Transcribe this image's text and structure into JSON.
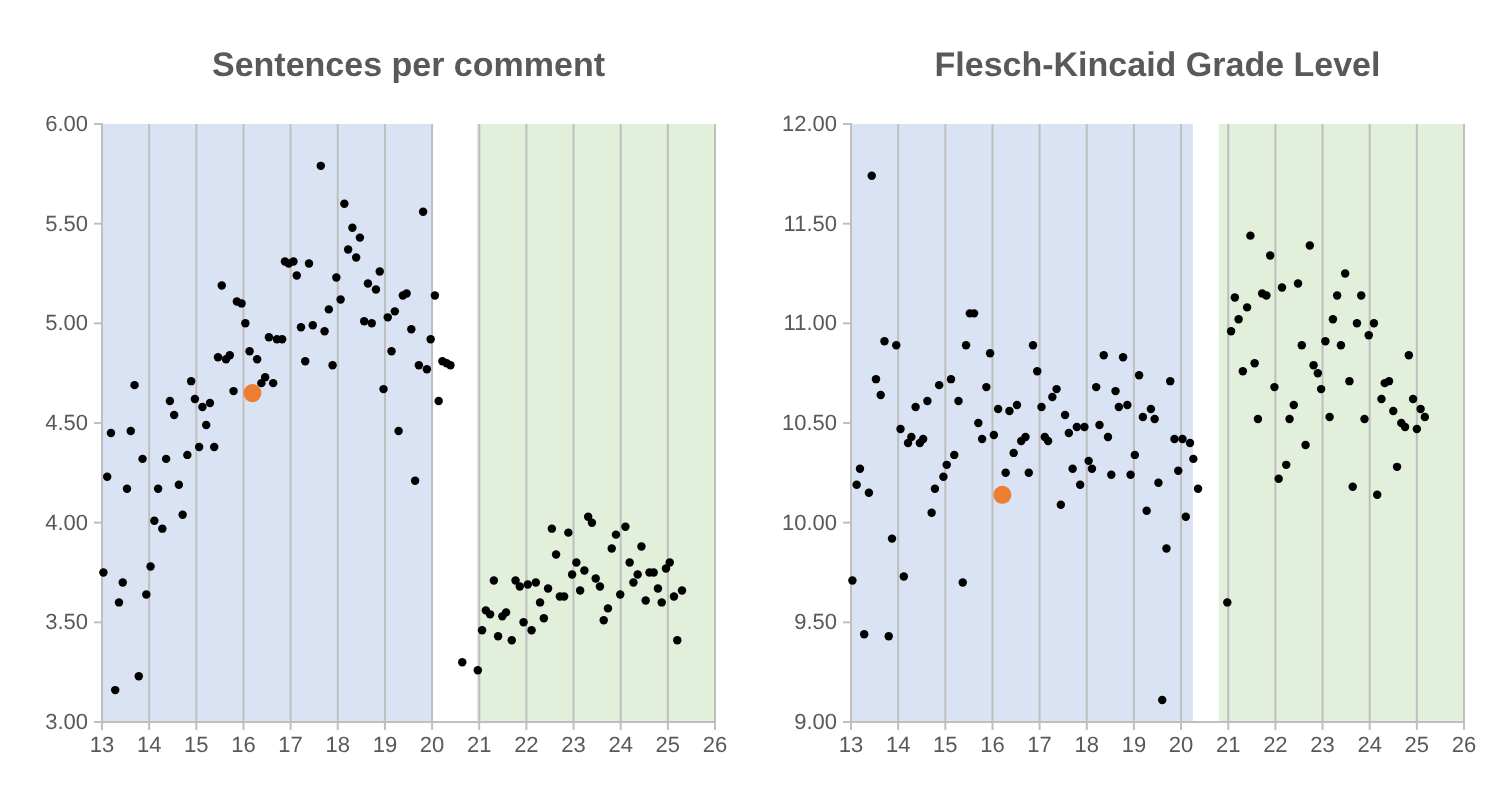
{
  "chart_data": [
    {
      "type": "scatter",
      "title": "Sentences per comment",
      "marker": "circle",
      "grid": "x",
      "xlim": [
        13,
        26
      ],
      "xticks": [
        13,
        14,
        15,
        16,
        17,
        18,
        19,
        20,
        21,
        22,
        23,
        24,
        25,
        26
      ],
      "ylim": [
        3,
        6
      ],
      "yticks": [
        {
          "value": 3,
          "label": "3.00"
        },
        {
          "value": 3.5,
          "label": "3.50"
        },
        {
          "value": 4,
          "label": "4.00"
        },
        {
          "value": 4.5,
          "label": "4.50"
        },
        {
          "value": 5,
          "label": "5.00"
        },
        {
          "value": 5.5,
          "label": "5.50"
        },
        {
          "value": 6,
          "label": "6.00"
        }
      ],
      "bands": [
        {
          "axis": "x",
          "from": 13,
          "to": 20,
          "color": "#dae3f3"
        },
        {
          "axis": "x",
          "from": 20.95,
          "to": 26,
          "color": "#e2efda"
        }
      ],
      "series": [
        {
          "color": "#000000",
          "x": [
            13.03,
            13.11,
            13.19,
            13.28,
            13.36,
            13.44,
            13.53,
            13.61,
            13.69,
            13.78,
            13.86,
            13.94,
            14.03,
            14.11,
            14.19,
            14.28,
            14.36,
            14.44,
            14.53,
            14.63,
            14.71,
            14.81,
            14.89,
            14.97,
            15.06,
            15.13,
            15.21,
            15.29,
            15.38,
            15.46,
            15.54,
            15.63,
            15.71,
            15.79,
            15.86,
            15.96,
            16.04,
            16.13,
            16.29,
            16.38,
            16.46,
            16.54,
            16.63,
            16.71,
            16.82,
            16.88,
            16.96,
            17.06,
            17.13,
            17.22,
            17.31,
            17.39,
            17.47,
            17.64,
            17.72,
            17.81,
            17.89,
            17.97,
            18.06,
            18.14,
            18.22,
            18.31,
            18.39,
            18.47,
            18.56,
            18.64,
            18.72,
            18.81,
            18.89,
            18.97,
            19.06,
            19.14,
            19.21,
            19.29,
            19.38,
            19.46,
            19.56,
            19.64,
            19.72,
            19.81,
            19.89,
            19.97,
            20.06,
            20.14,
            20.22,
            20.31,
            20.39,
            20.64,
            20.97,
            21.06,
            21.14,
            21.23,
            21.31,
            21.4,
            21.49,
            21.57,
            21.69,
            21.77,
            21.86,
            21.94,
            22.03,
            22.11,
            22.2,
            22.29,
            22.37,
            22.46,
            22.54,
            22.63,
            22.71,
            22.8,
            22.89,
            22.97,
            23.06,
            23.14,
            23.23,
            23.31,
            23.39,
            23.47,
            23.56,
            23.64,
            23.73,
            23.81,
            23.9,
            23.99,
            24.1,
            24.19,
            24.27,
            24.36,
            24.44,
            24.53,
            24.61,
            24.7,
            24.79,
            24.87,
            24.96,
            25.04,
            25.13,
            25.2,
            25.3
          ],
          "values": [
            3.75,
            4.23,
            4.45,
            3.16,
            3.6,
            3.7,
            4.17,
            4.46,
            4.69,
            3.23,
            4.32,
            3.64,
            3.78,
            4.01,
            4.17,
            3.97,
            4.32,
            4.61,
            4.54,
            4.19,
            4.04,
            4.34,
            4.71,
            4.62,
            4.38,
            4.58,
            4.49,
            4.6,
            4.38,
            4.83,
            5.19,
            4.82,
            4.84,
            4.66,
            5.11,
            5.1,
            5.0,
            4.86,
            4.82,
            4.7,
            4.73,
            4.93,
            4.7,
            4.92,
            4.92,
            5.31,
            5.3,
            5.31,
            5.24,
            4.98,
            4.81,
            5.3,
            4.99,
            5.79,
            4.96,
            5.07,
            4.79,
            5.23,
            5.12,
            5.6,
            5.37,
            5.48,
            5.33,
            5.43,
            5.01,
            5.2,
            5.0,
            5.17,
            5.26,
            4.67,
            5.03,
            4.86,
            5.06,
            4.46,
            5.14,
            5.15,
            4.97,
            4.21,
            4.79,
            5.56,
            4.77,
            4.92,
            5.14,
            4.61,
            4.81,
            4.8,
            4.79,
            3.3,
            3.26,
            3.46,
            3.56,
            3.54,
            3.71,
            3.43,
            3.53,
            3.55,
            3.41,
            3.71,
            3.68,
            3.5,
            3.69,
            3.46,
            3.7,
            3.6,
            3.52,
            3.67,
            3.97,
            3.84,
            3.63,
            3.63,
            3.95,
            3.74,
            3.8,
            3.66,
            3.76,
            4.03,
            4.0,
            3.72,
            3.68,
            3.51,
            3.57,
            3.87,
            3.94,
            3.64,
            3.98,
            3.8,
            3.7,
            3.74,
            3.88,
            3.61,
            3.75,
            3.75,
            3.67,
            3.6,
            3.77,
            3.8,
            3.63,
            3.41,
            3.66
          ]
        },
        {
          "color": "#ed7d31",
          "x": [
            16.19
          ],
          "values": [
            4.65
          ]
        }
      ]
    },
    {
      "type": "scatter",
      "title": "Flesch-Kincaid Grade Level",
      "marker": "circle",
      "grid": "x",
      "xlim": [
        13,
        26
      ],
      "xticks": [
        13,
        14,
        15,
        16,
        17,
        18,
        19,
        20,
        21,
        22,
        23,
        24,
        25,
        26
      ],
      "ylim": [
        9,
        12
      ],
      "yticks": [
        {
          "value": 9,
          "label": "9.00"
        },
        {
          "value": 9.5,
          "label": "9.50"
        },
        {
          "value": 10,
          "label": "10.00"
        },
        {
          "value": 10.5,
          "label": "10.50"
        },
        {
          "value": 11,
          "label": "11.00"
        },
        {
          "value": 11.5,
          "label": "11.50"
        },
        {
          "value": 12,
          "label": "12.00"
        }
      ],
      "bands": [
        {
          "axis": "x",
          "from": 13,
          "to": 20.25,
          "color": "#dae3f3"
        },
        {
          "axis": "x",
          "from": 20.8,
          "to": 26,
          "color": "#e2efda"
        }
      ],
      "series": [
        {
          "color": "#000000",
          "x": [
            13.03,
            13.12,
            13.19,
            13.28,
            13.38,
            13.44,
            13.53,
            13.63,
            13.71,
            13.8,
            13.87,
            13.96,
            14.05,
            14.12,
            14.21,
            14.28,
            14.37,
            14.46,
            14.53,
            14.62,
            14.71,
            14.78,
            14.87,
            14.96,
            15.03,
            15.12,
            15.19,
            15.28,
            15.37,
            15.44,
            15.52,
            15.61,
            15.7,
            15.78,
            15.87,
            15.95,
            16.03,
            16.12,
            16.28,
            16.36,
            16.45,
            16.52,
            16.61,
            16.7,
            16.77,
            16.86,
            16.95,
            17.04,
            17.11,
            17.18,
            17.27,
            17.36,
            17.45,
            17.54,
            17.62,
            17.7,
            17.79,
            17.86,
            17.95,
            18.04,
            18.11,
            18.2,
            18.27,
            18.36,
            18.45,
            18.52,
            18.61,
            18.68,
            18.77,
            18.86,
            18.93,
            19.02,
            19.11,
            19.19,
            19.27,
            19.36,
            19.44,
            19.52,
            19.6,
            19.69,
            19.77,
            19.86,
            19.94,
            20.03,
            20.1,
            20.19,
            20.26,
            20.36,
            20.98,
            21.06,
            21.14,
            21.22,
            21.31,
            21.4,
            21.47,
            21.56,
            21.63,
            21.72,
            21.81,
            21.89,
            21.98,
            22.07,
            22.14,
            22.23,
            22.3,
            22.39,
            22.48,
            22.56,
            22.64,
            22.73,
            22.81,
            22.9,
            22.97,
            23.06,
            23.15,
            23.22,
            23.31,
            23.39,
            23.48,
            23.57,
            23.64,
            23.73,
            23.82,
            23.89,
            23.98,
            24.09,
            24.16,
            24.25,
            24.32,
            24.41,
            24.5,
            24.58,
            24.67,
            24.75,
            24.83,
            24.92,
            25.0,
            25.08,
            25.17
          ],
          "values": [
            9.71,
            10.19,
            10.27,
            9.44,
            10.15,
            11.74,
            10.72,
            10.64,
            10.91,
            9.43,
            9.92,
            10.89,
            10.47,
            9.73,
            10.4,
            10.43,
            10.58,
            10.4,
            10.42,
            10.61,
            10.05,
            10.17,
            10.69,
            10.23,
            10.29,
            10.72,
            10.34,
            10.61,
            9.7,
            10.89,
            11.05,
            11.05,
            10.5,
            10.42,
            10.68,
            10.85,
            10.44,
            10.57,
            10.25,
            10.56,
            10.35,
            10.59,
            10.41,
            10.43,
            10.25,
            10.89,
            10.76,
            10.58,
            10.43,
            10.41,
            10.63,
            10.67,
            10.09,
            10.54,
            10.45,
            10.27,
            10.48,
            10.19,
            10.48,
            10.31,
            10.27,
            10.68,
            10.49,
            10.84,
            10.43,
            10.24,
            10.66,
            10.58,
            10.83,
            10.59,
            10.24,
            10.34,
            10.74,
            10.53,
            10.06,
            10.57,
            10.52,
            10.2,
            9.11,
            9.87,
            10.71,
            10.42,
            10.26,
            10.42,
            10.03,
            10.4,
            10.32,
            10.17,
            9.6,
            10.96,
            11.13,
            11.02,
            10.76,
            11.08,
            11.44,
            10.8,
            10.52,
            11.15,
            11.14,
            11.34,
            10.68,
            10.22,
            11.18,
            10.29,
            10.52,
            10.59,
            11.2,
            10.89,
            10.39,
            11.39,
            10.79,
            10.75,
            10.67,
            10.91,
            10.53,
            11.02,
            11.14,
            10.89,
            11.25,
            10.71,
            10.18,
            11.0,
            11.14,
            10.52,
            10.94,
            11.0,
            10.14,
            10.62,
            10.7,
            10.71,
            10.56,
            10.28,
            10.5,
            10.48,
            10.84,
            10.62,
            10.47,
            10.57,
            10.53
          ]
        },
        {
          "color": "#ed7d31",
          "x": [
            16.21
          ],
          "values": [
            10.14
          ]
        }
      ]
    }
  ]
}
